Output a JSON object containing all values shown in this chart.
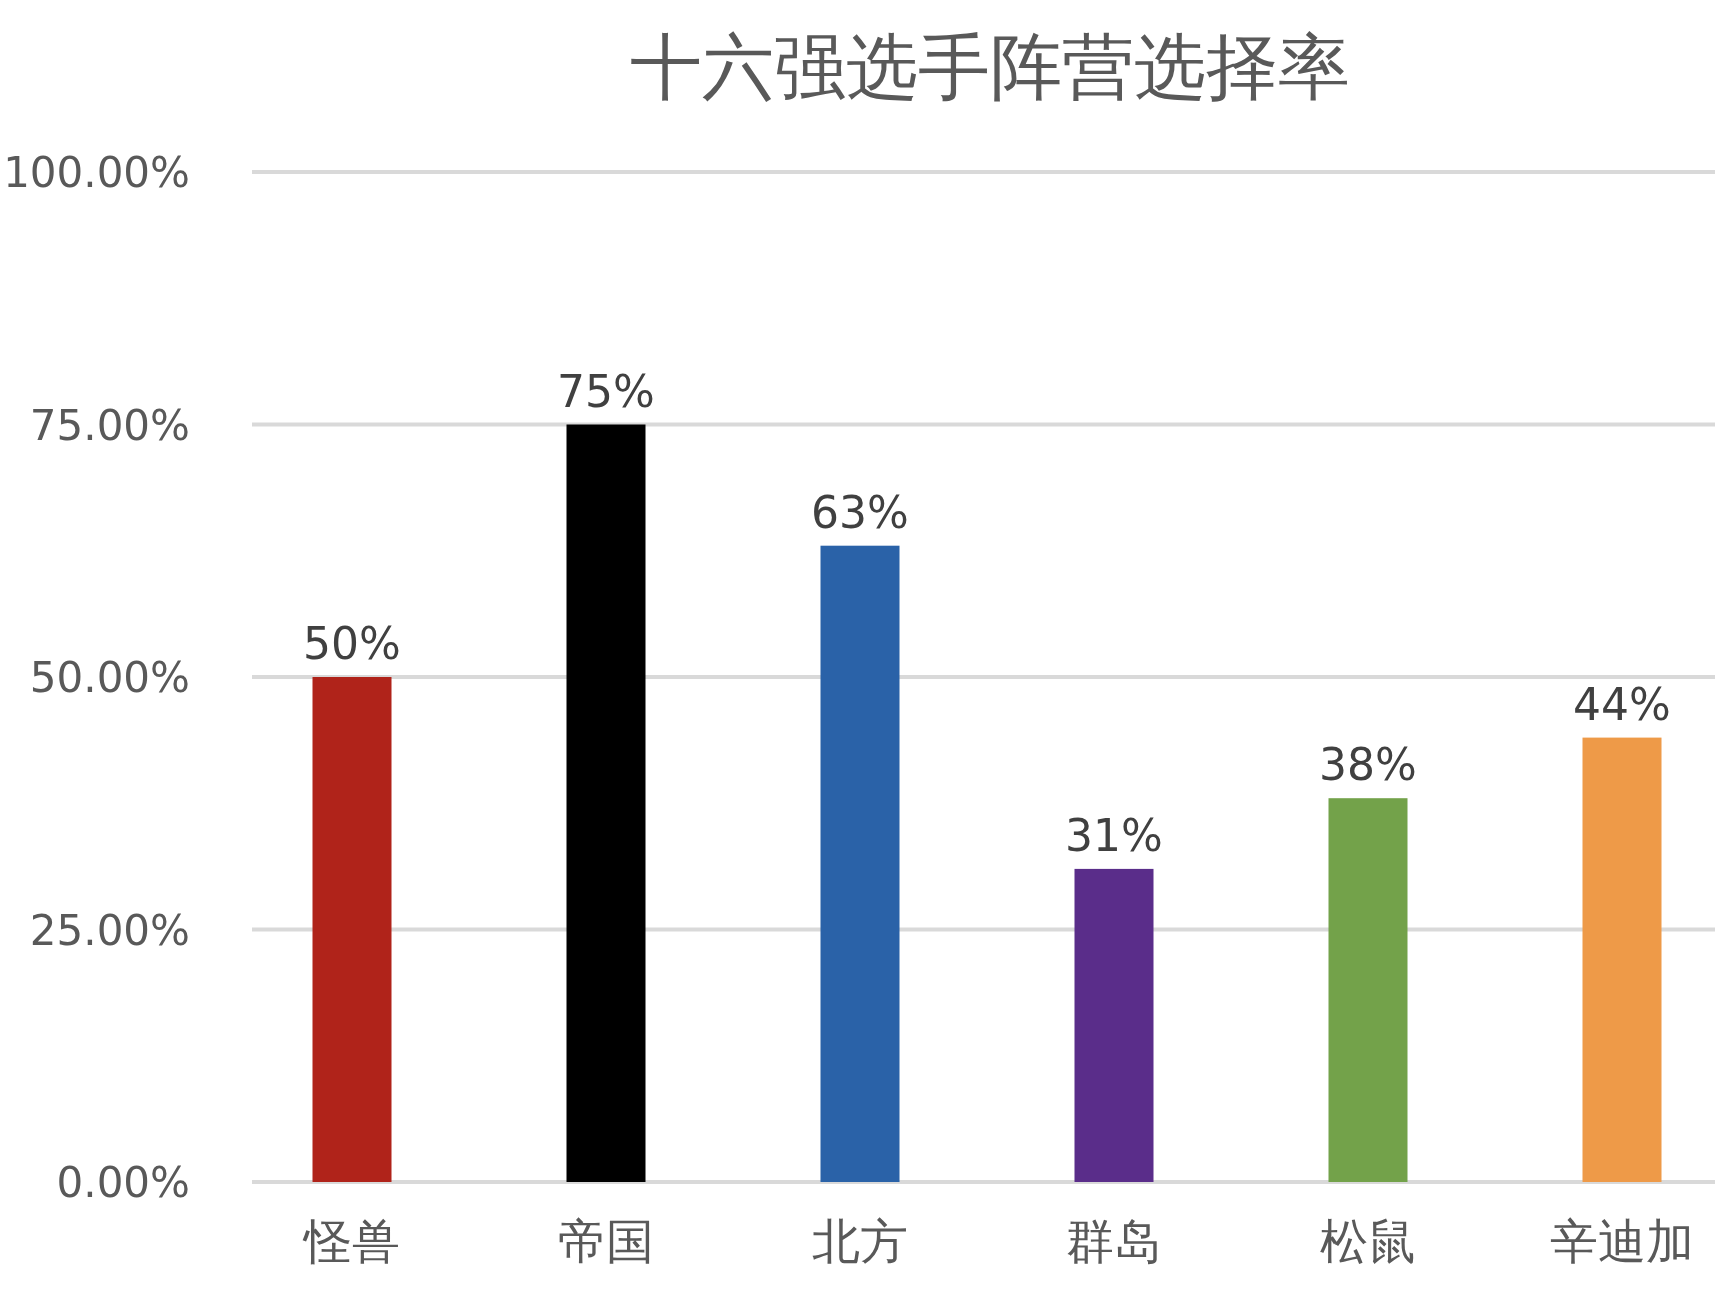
{
  "chart_data": {
    "type": "bar",
    "title": "十六强选手阵营选择率",
    "categories": [
      "怪兽",
      "帝国",
      "北方",
      "群岛",
      "松鼠",
      "辛迪加"
    ],
    "values": [
      50,
      75,
      63,
      31,
      38,
      44
    ],
    "value_labels": [
      "50%",
      "75%",
      "63%",
      "31%",
      "38%",
      "44%"
    ],
    "colors": [
      "#b0231a",
      "#000000",
      "#2a62a8",
      "#5a2d8a",
      "#73a24a",
      "#ee9a48"
    ],
    "ylim": [
      0,
      100
    ],
    "yticks": [
      {
        "value": 0,
        "label": "0.00%"
      },
      {
        "value": 25,
        "label": "25.00%"
      },
      {
        "value": 50,
        "label": "50.00%"
      },
      {
        "value": 75,
        "label": "75.00%"
      },
      {
        "value": 100,
        "label": "100.00%"
      }
    ],
    "grid": "y"
  }
}
